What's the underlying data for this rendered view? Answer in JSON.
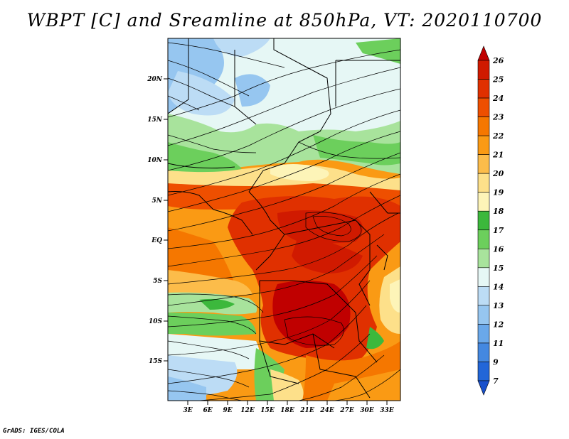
{
  "title": "WBPT [C] and Sreamline at 850hPa, VT: 2020110700",
  "credit": "GrADS: IGES/COLA",
  "map": {
    "lat_labels": [
      "20N",
      "15N",
      "10N",
      "5N",
      "EQ",
      "5S",
      "10S",
      "15S"
    ],
    "lon_labels": [
      "3E",
      "6E",
      "9E",
      "12E",
      "15E",
      "18E",
      "21E",
      "24E",
      "27E",
      "30E",
      "33E"
    ]
  },
  "colorbar": {
    "levels": [
      "26",
      "25",
      "24",
      "23",
      "22",
      "21",
      "20",
      "19",
      "18",
      "17",
      "16",
      "15",
      "14",
      "13",
      "12",
      "11",
      "9",
      "7"
    ],
    "colors": [
      "#c00000",
      "#d01a00",
      "#e03000",
      "#ee4f00",
      "#f57700",
      "#fa9a14",
      "#fcbc4a",
      "#fde08a",
      "#fdf4b8",
      "#3cb83c",
      "#6ccf5c",
      "#a8e39c",
      "#e6f7f5",
      "#bcdcf5",
      "#96c6f0",
      "#6aa8ea",
      "#4488e0",
      "#2266d8",
      "#1850cc"
    ]
  }
}
